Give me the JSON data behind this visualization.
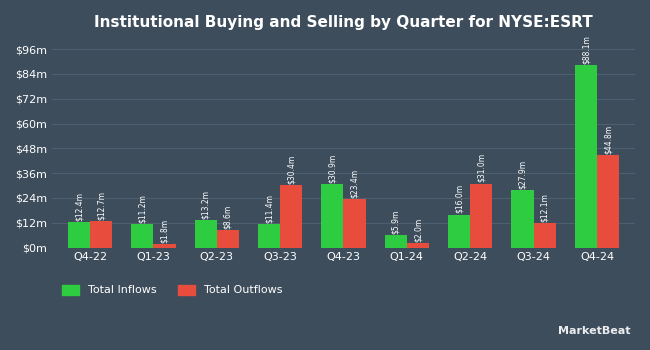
{
  "title": "Institutional Buying and Selling by Quarter for NYSE:ESRT",
  "quarters": [
    "Q4-22",
    "Q1-23",
    "Q2-23",
    "Q3-23",
    "Q4-23",
    "Q1-24",
    "Q2-24",
    "Q3-24",
    "Q4-24"
  ],
  "inflows": [
    12.4,
    11.2,
    13.2,
    11.4,
    30.9,
    5.9,
    16.0,
    27.9,
    88.1
  ],
  "outflows": [
    12.7,
    1.8,
    8.6,
    30.4,
    23.4,
    2.0,
    31.0,
    12.1,
    44.8
  ],
  "inflow_labels": [
    "$12.4m",
    "$11.2m",
    "$13.2m",
    "$11.4m",
    "$30.9m",
    "$5.9m",
    "$16.0m",
    "$27.9m",
    "$88.1m"
  ],
  "outflow_labels": [
    "$12.7m",
    "$1.8m",
    "$8.6m",
    "$30.4m",
    "$23.4m",
    "$2.0m",
    "$31.0m",
    "$12.1m",
    "$44.8m"
  ],
  "inflow_color": "#2ecc40",
  "outflow_color": "#e74c3c",
  "background_color": "#3d4d5c",
  "grid_color": "#4f6070",
  "text_color": "#ffffff",
  "yticks": [
    0,
    12,
    24,
    36,
    48,
    60,
    72,
    84,
    96
  ],
  "ytick_labels": [
    "$0m",
    "$12m",
    "$24m",
    "$36m",
    "$48m",
    "$60m",
    "$72m",
    "$84m",
    "$96m"
  ],
  "ylim": [
    0,
    100
  ],
  "bar_width": 0.35,
  "legend_inflow": "Total Inflows",
  "legend_outflow": "Total Outflows",
  "watermark": "MarketBeat"
}
